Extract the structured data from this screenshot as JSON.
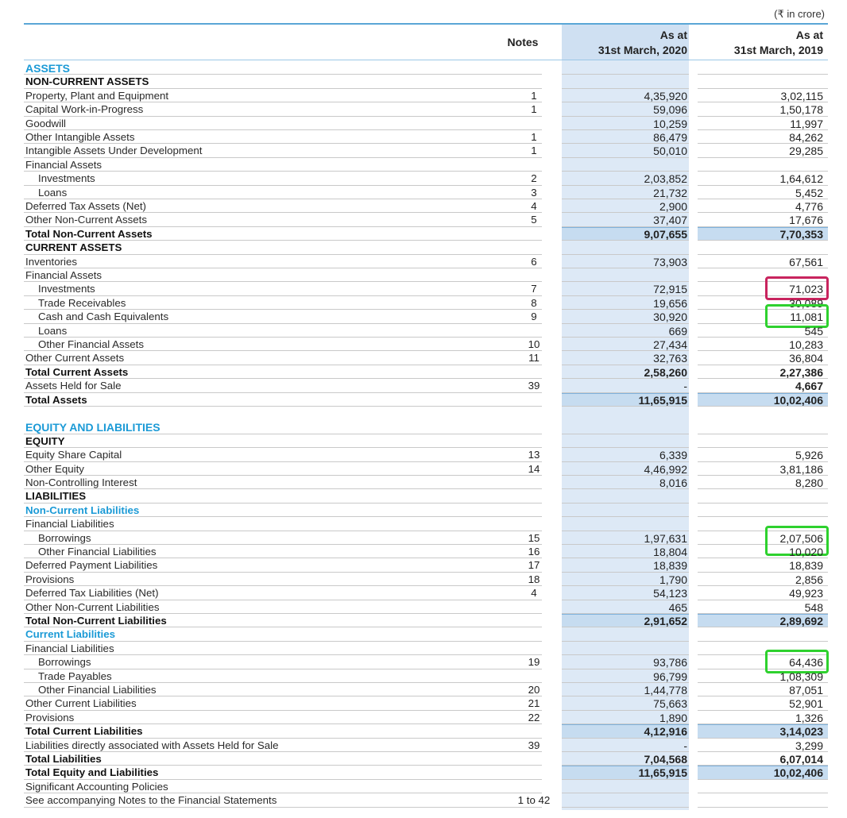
{
  "unit_label": "(₹ in crore)",
  "header": {
    "notes": "Notes",
    "col1_line1": "As at",
    "col1_line2": "31st March, 2020",
    "col2_line1": "As at",
    "col2_line2": "31st March, 2019"
  },
  "colors": {
    "section_blue": "#1b9ad6",
    "column_shade": "#dde9f6",
    "total_shade": "#c6dcf0",
    "highlight_magenta": "#c8245e",
    "highlight_green": "#2ed12e"
  },
  "rows": [
    {
      "label": "ASSETS",
      "type": "section"
    },
    {
      "label": "NON-CURRENT ASSETS",
      "type": "head"
    },
    {
      "label": "Property, Plant and Equipment",
      "note": "1",
      "v2020": "4,35,920",
      "v2019": "3,02,115"
    },
    {
      "label": "Capital Work-in-Progress",
      "note": "1",
      "v2020": "59,096",
      "v2019": "1,50,178"
    },
    {
      "label": "Goodwill",
      "v2020": "10,259",
      "v2019": "11,997"
    },
    {
      "label": "Other Intangible Assets",
      "note": "1",
      "v2020": "86,479",
      "v2019": "84,262"
    },
    {
      "label": "Intangible Assets Under Development",
      "note": "1",
      "v2020": "50,010",
      "v2019": "29,285"
    },
    {
      "label": "Financial Assets"
    },
    {
      "label": "Investments",
      "indent": true,
      "note": "2",
      "v2020": "2,03,852",
      "v2019": "1,64,612"
    },
    {
      "label": "Loans",
      "indent": true,
      "note": "3",
      "v2020": "21,732",
      "v2019": "5,452"
    },
    {
      "label": "Deferred Tax Assets (Net)",
      "note": "4",
      "v2020": "2,900",
      "v2019": "4,776"
    },
    {
      "label": "Other Non-Current Assets",
      "note": "5",
      "v2020": "37,407",
      "v2019": "17,676"
    },
    {
      "label": "Total Non-Current Assets",
      "type": "total",
      "shade": true,
      "v2020": "9,07,655",
      "v2019": "7,70,353"
    },
    {
      "label": "CURRENT ASSETS",
      "type": "head"
    },
    {
      "label": "Inventories",
      "note": "6",
      "v2020": "73,903",
      "v2019": "67,561"
    },
    {
      "label": "Financial Assets"
    },
    {
      "label": "Investments",
      "indent": true,
      "note": "7",
      "v2020": "72,915",
      "v2019": "71,023",
      "highlight": "magenta"
    },
    {
      "label": "Trade Receivables",
      "indent": true,
      "note": "8",
      "v2020": "19,656",
      "v2019": "30,089"
    },
    {
      "label": "Cash and Cash Equivalents",
      "indent": true,
      "note": "9",
      "v2020": "30,920",
      "v2019": "11,081",
      "highlight": "green"
    },
    {
      "label": "Loans",
      "indent": true,
      "v2020": "669",
      "v2019": "545"
    },
    {
      "label": "Other Financial Assets",
      "indent": true,
      "note": "10",
      "v2020": "27,434",
      "v2019": "10,283"
    },
    {
      "label": "Other Current Assets",
      "note": "11",
      "v2020": "32,763",
      "v2019": "36,804"
    },
    {
      "label": "Total Current Assets",
      "type": "total",
      "v2020": "2,58,260",
      "v2019": "2,27,386"
    },
    {
      "label": "Assets Held for Sale",
      "note": "39",
      "v2020": "-",
      "v2019": "4,667",
      "bold2019": true
    },
    {
      "label": "Total Assets",
      "type": "total",
      "shade": true,
      "v2020": "11,65,915",
      "v2019": "10,02,406"
    },
    {
      "label": "",
      "type": "spacer"
    },
    {
      "label": "EQUITY AND LIABILITIES",
      "type": "section"
    },
    {
      "label": "EQUITY",
      "type": "head"
    },
    {
      "label": "Equity Share Capital",
      "note": "13",
      "v2020": "6,339",
      "v2019": "5,926"
    },
    {
      "label": "Other Equity",
      "note": "14",
      "v2020": "4,46,992",
      "v2019": "3,81,186"
    },
    {
      "label": "Non-Controlling Interest",
      "v2020": "8,016",
      "v2019": "8,280"
    },
    {
      "label": "LIABILITIES",
      "type": "head"
    },
    {
      "label": "Non-Current Liabilities",
      "type": "subsec"
    },
    {
      "label": "Financial Liabilities"
    },
    {
      "label": "Borrowings",
      "indent": true,
      "note": "15",
      "v2020": "1,97,631",
      "v2019": "2,07,506",
      "highlight": "green2"
    },
    {
      "label": "Other Financial Liabilities",
      "indent": true,
      "note": "16",
      "v2020": "18,804",
      "v2019": "10,020"
    },
    {
      "label": "Deferred Payment Liabilities",
      "note": "17",
      "v2020": "18,839",
      "v2019": "18,839"
    },
    {
      "label": "Provisions",
      "note": "18",
      "v2020": "1,790",
      "v2019": "2,856"
    },
    {
      "label": "Deferred Tax Liabilities (Net)",
      "note": "4",
      "v2020": "54,123",
      "v2019": "49,923"
    },
    {
      "label": "Other Non-Current Liabilities",
      "v2020": "465",
      "v2019": "548"
    },
    {
      "label": "Total Non-Current Liabilities",
      "type": "total",
      "shade": true,
      "v2020": "2,91,652",
      "v2019": "2,89,692"
    },
    {
      "label": "Current Liabilities",
      "type": "subsec"
    },
    {
      "label": "Financial Liabilities"
    },
    {
      "label": "Borrowings",
      "indent": true,
      "note": "19",
      "v2020": "93,786",
      "v2019": "64,436",
      "highlight": "green"
    },
    {
      "label": "Trade Payables",
      "indent": true,
      "v2020": "96,799",
      "v2019": "1,08,309"
    },
    {
      "label": "Other Financial Liabilities",
      "indent": true,
      "note": "20",
      "v2020": "1,44,778",
      "v2019": "87,051"
    },
    {
      "label": "Other Current Liabilities",
      "note": "21",
      "v2020": "75,663",
      "v2019": "52,901"
    },
    {
      "label": "Provisions",
      "note": "22",
      "v2020": "1,890",
      "v2019": "1,326"
    },
    {
      "label": "Total Current Liabilities",
      "type": "total",
      "shade": true,
      "v2020": "4,12,916",
      "v2019": "3,14,023"
    },
    {
      "label": "Liabilities directly associated with Assets Held for Sale",
      "note": "39",
      "v2020": "-",
      "v2019": "3,299"
    },
    {
      "label": "Total Liabilities",
      "type": "total",
      "v2020": "7,04,568",
      "v2019": "6,07,014"
    },
    {
      "label": "Total Equity and Liabilities",
      "type": "total",
      "shade": true,
      "v2020": "11,65,915",
      "v2019": "10,02,406"
    },
    {
      "label": "Significant Accounting Policies"
    },
    {
      "label": "See accompanying Notes to the Financial Statements",
      "note": "1 to 42"
    }
  ]
}
